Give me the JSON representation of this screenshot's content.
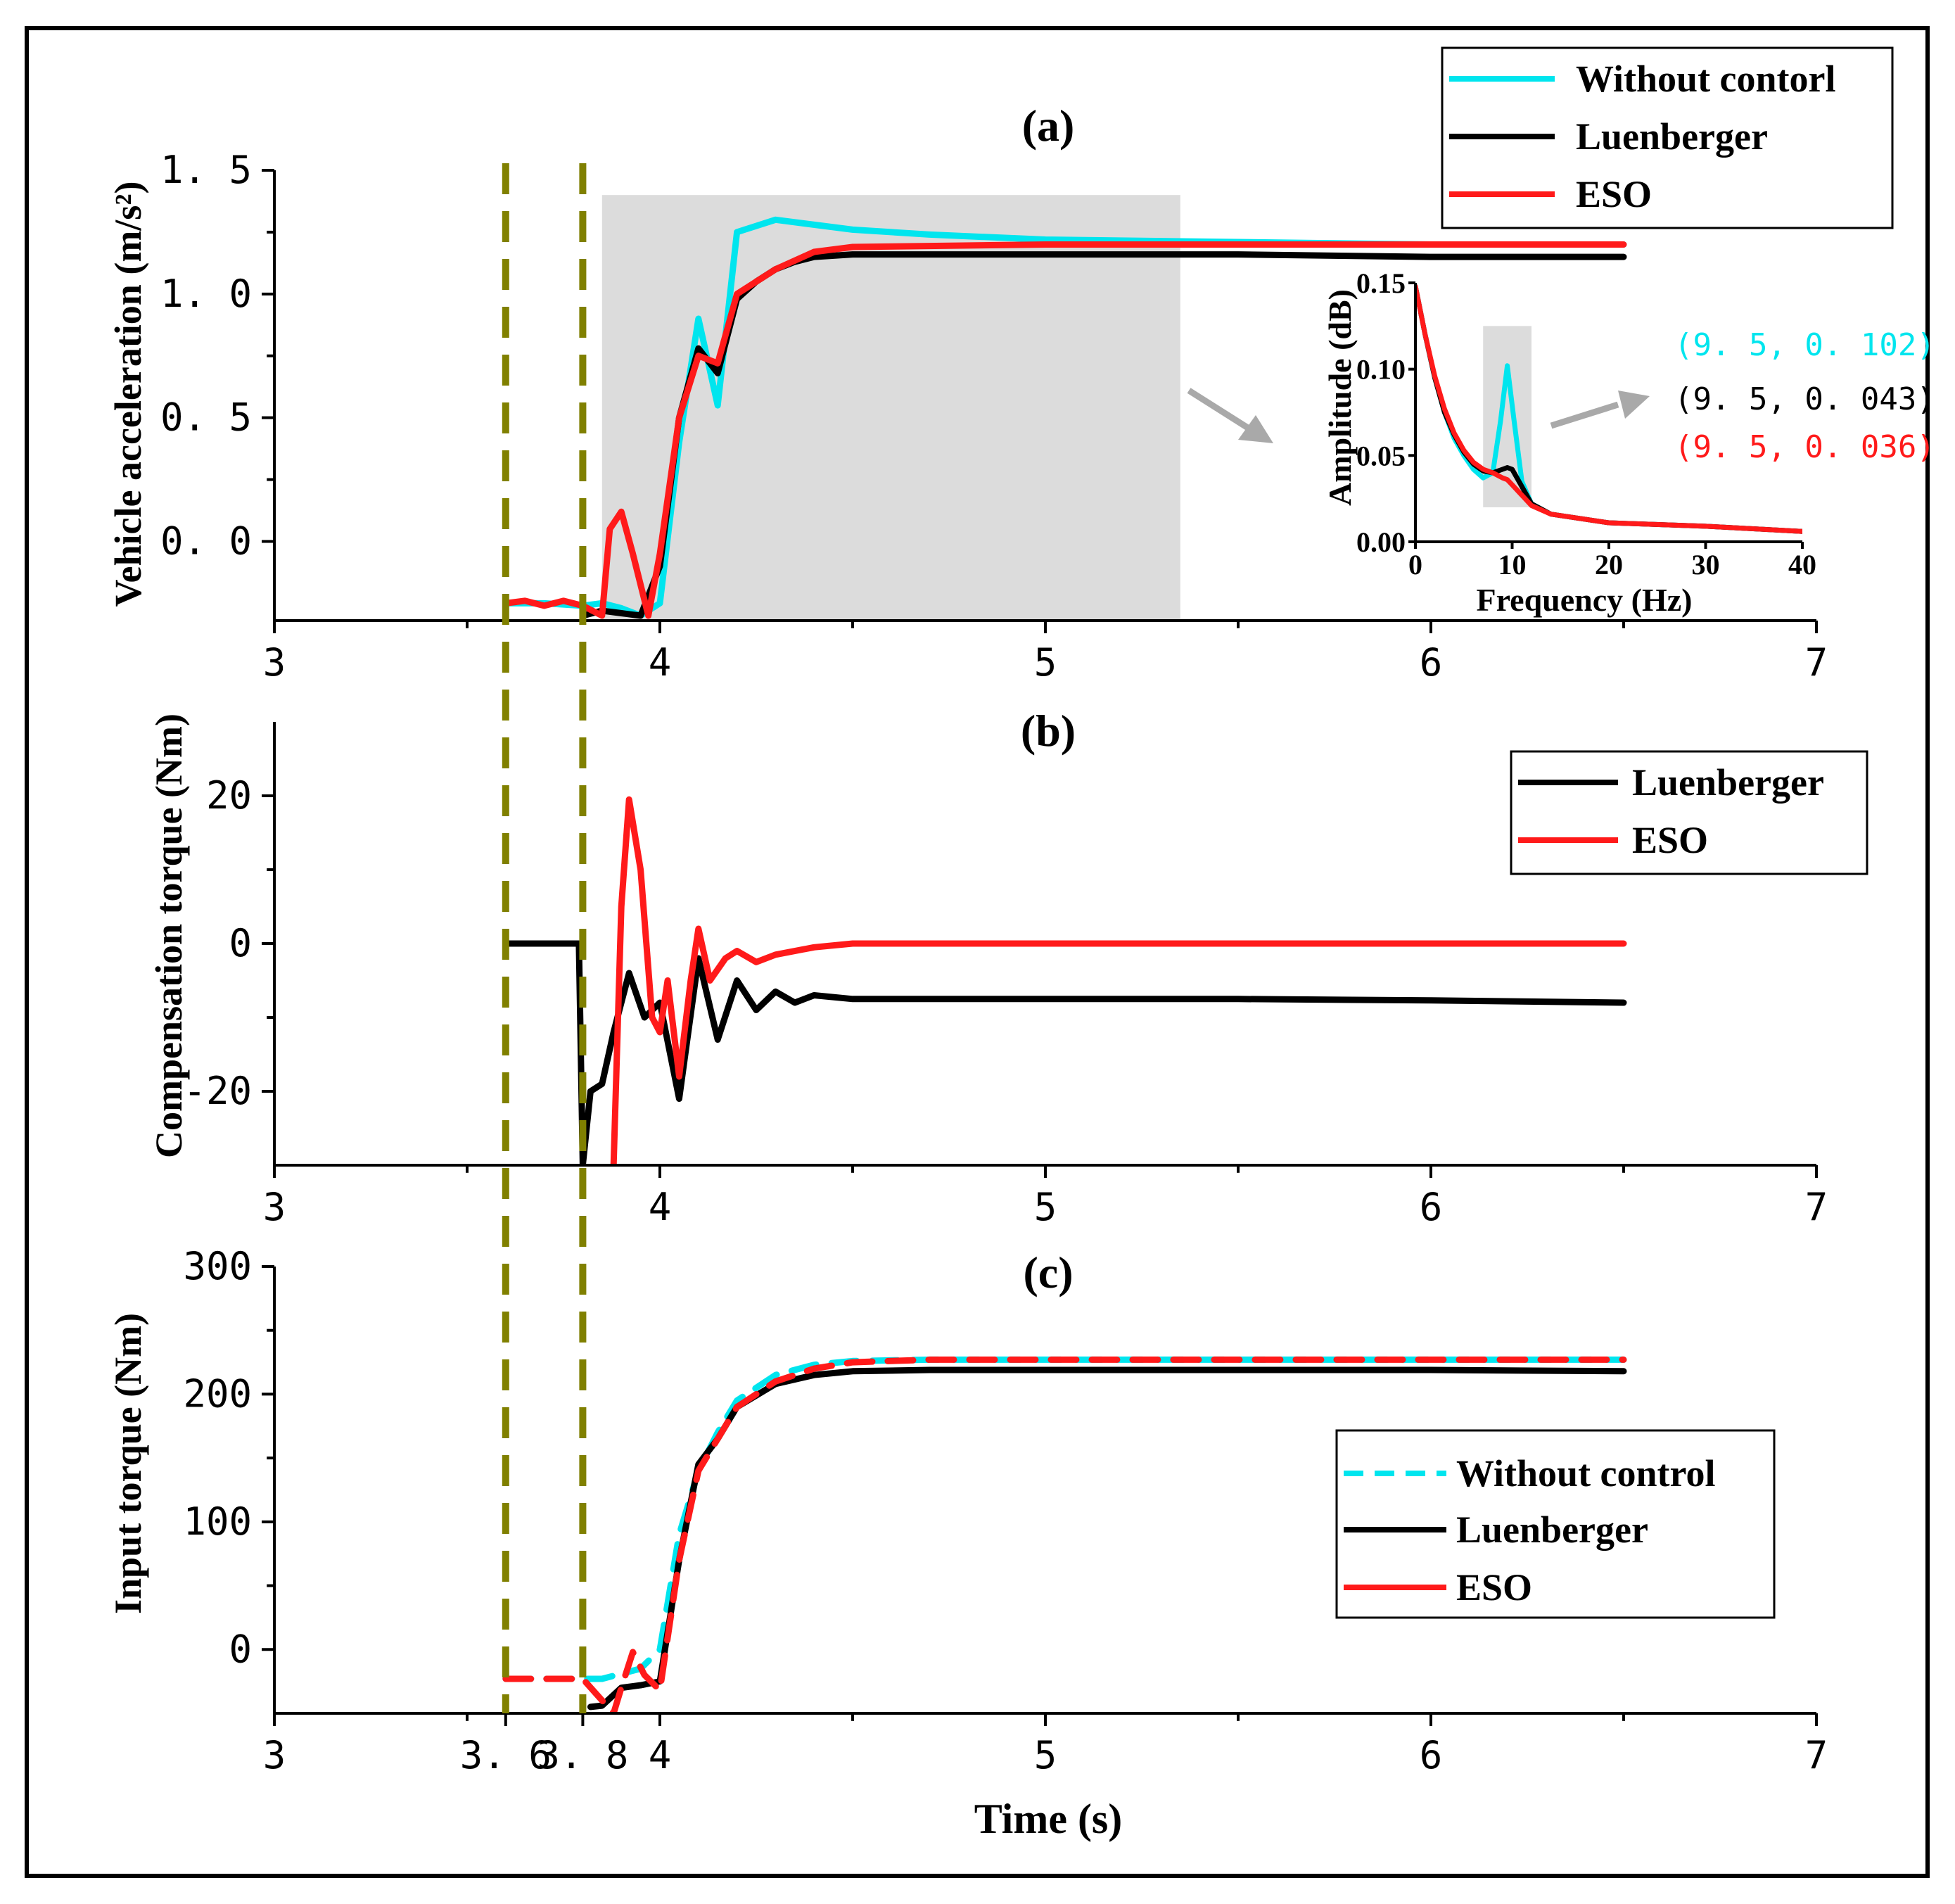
{
  "colors": {
    "cyan": "#00e5ee",
    "black": "#000000",
    "red": "#ff1a1a",
    "marker": "#808000",
    "shade": "#dcdcdc"
  },
  "chart_data": [
    {
      "id": "a",
      "type": "line",
      "title": "(a)",
      "xlabel": "",
      "ylabel": "Vehicle acceleration (m/s²)",
      "xlim": [
        3,
        7
      ],
      "ylim": [
        -0.32,
        1.5
      ],
      "xticks": [
        3,
        4,
        5,
        6,
        7
      ],
      "yticks": [
        0.0,
        0.5,
        1.0,
        1.5
      ],
      "ytick_labels": [
        "0. 0",
        "0. 5",
        "1. 0",
        "1. 5"
      ],
      "legend": [
        "Without contorl",
        "Luenberger",
        "ESO"
      ],
      "legend_position": "top-right",
      "highlight_region": {
        "x": [
          3.85,
          5.35
        ],
        "y": [
          -0.32,
          1.4
        ]
      },
      "series": [
        {
          "name": "Without contorl",
          "color": "cyan",
          "x": [
            3.6,
            3.7,
            3.8,
            3.85,
            3.9,
            3.95,
            4.0,
            4.05,
            4.1,
            4.15,
            4.2,
            4.3,
            4.4,
            4.5,
            4.7,
            5.0,
            5.5,
            6.0,
            6.5
          ],
          "y": [
            -0.25,
            -0.25,
            -0.26,
            -0.25,
            -0.27,
            -0.3,
            -0.25,
            0.4,
            0.9,
            0.55,
            1.25,
            1.3,
            1.28,
            1.26,
            1.24,
            1.22,
            1.21,
            1.2,
            1.2
          ]
        },
        {
          "name": "Luenberger",
          "color": "black",
          "x": [
            3.8,
            3.85,
            3.9,
            3.95,
            4.0,
            4.05,
            4.1,
            4.15,
            4.2,
            4.25,
            4.3,
            4.35,
            4.4,
            4.5,
            5.0,
            5.5,
            6.0,
            6.5
          ],
          "y": [
            -0.3,
            -0.28,
            -0.29,
            -0.3,
            -0.1,
            0.5,
            0.78,
            0.68,
            0.98,
            1.05,
            1.1,
            1.13,
            1.15,
            1.16,
            1.16,
            1.16,
            1.15,
            1.15
          ]
        },
        {
          "name": "ESO",
          "color": "red",
          "x": [
            3.6,
            3.65,
            3.7,
            3.75,
            3.8,
            3.85,
            3.87,
            3.9,
            3.93,
            3.97,
            4.0,
            4.05,
            4.1,
            4.15,
            4.2,
            4.3,
            4.4,
            4.5,
            5.0,
            5.5,
            6.0,
            6.5
          ],
          "y": [
            -0.25,
            -0.24,
            -0.26,
            -0.24,
            -0.26,
            -0.3,
            0.05,
            0.12,
            -0.05,
            -0.3,
            -0.05,
            0.5,
            0.75,
            0.72,
            1.0,
            1.1,
            1.17,
            1.19,
            1.2,
            1.2,
            1.2,
            1.2
          ]
        }
      ],
      "inset": {
        "type": "line",
        "xlabel": "Frequency (Hz)",
        "ylabel": "Amplitude (dB)",
        "xlim": [
          0,
          40
        ],
        "ylim": [
          0,
          0.15
        ],
        "xticks": [
          0,
          10,
          20,
          30,
          40
        ],
        "yticks": [
          0.0,
          0.05,
          0.1,
          0.15
        ],
        "ytick_labels": [
          "0.00",
          "0.05",
          "0.10",
          "0.15"
        ],
        "highlight_region": {
          "x": [
            7,
            12
          ],
          "y": [
            0.02,
            0.125
          ]
        },
        "annotations": [
          {
            "text": "(9. 5,  0. 102)",
            "color": "cyan"
          },
          {
            "text": "(9. 5,  0. 043)",
            "color": "black"
          },
          {
            "text": "(9. 5,  0. 036)",
            "color": "red"
          }
        ],
        "series": [
          {
            "name": "Without contorl",
            "color": "cyan",
            "x": [
              0,
              1,
              2,
              3,
              4,
              5,
              6,
              7,
              8,
              8.8,
              9.5,
              10.2,
              11,
              12,
              14,
              20,
              30,
              40
            ],
            "y": [
              0.148,
              0.12,
              0.095,
              0.075,
              0.06,
              0.05,
              0.042,
              0.037,
              0.04,
              0.07,
              0.102,
              0.07,
              0.035,
              0.022,
              0.016,
              0.011,
              0.009,
              0.006
            ]
          },
          {
            "name": "Luenberger",
            "color": "black",
            "x": [
              0,
              1,
              2,
              3,
              4,
              5,
              6,
              7,
              8,
              9,
              9.5,
              10,
              11,
              12,
              14,
              20,
              30,
              40
            ],
            "y": [
              0.148,
              0.12,
              0.095,
              0.075,
              0.062,
              0.052,
              0.045,
              0.041,
              0.04,
              0.042,
              0.043,
              0.042,
              0.032,
              0.022,
              0.016,
              0.011,
              0.009,
              0.006
            ]
          },
          {
            "name": "ESO",
            "color": "red",
            "x": [
              0,
              1,
              2,
              3,
              4,
              5,
              6,
              7,
              8,
              9,
              9.5,
              10,
              11,
              12,
              14,
              20,
              30,
              40
            ],
            "y": [
              0.148,
              0.12,
              0.096,
              0.077,
              0.063,
              0.053,
              0.046,
              0.042,
              0.04,
              0.037,
              0.036,
              0.033,
              0.027,
              0.021,
              0.016,
              0.011,
              0.009,
              0.006
            ]
          }
        ]
      }
    },
    {
      "id": "b",
      "type": "line",
      "title": "(b)",
      "xlabel": "",
      "ylabel": "Compensation torque (Nm)",
      "xlim": [
        3,
        7
      ],
      "ylim": [
        -30,
        30
      ],
      "xticks": [
        3,
        4,
        5,
        6,
        7
      ],
      "yticks": [
        -20,
        0,
        20
      ],
      "ytick_labels": [
        "-20",
        "0",
        "20"
      ],
      "legend": [
        "Luenberger",
        "ESO"
      ],
      "legend_position": "top-right",
      "series": [
        {
          "name": "Luenberger",
          "color": "black",
          "x": [
            3.6,
            3.79,
            3.8,
            3.82,
            3.85,
            3.88,
            3.92,
            3.96,
            4.0,
            4.05,
            4.1,
            4.15,
            4.2,
            4.25,
            4.3,
            4.35,
            4.4,
            4.5,
            5.0,
            5.5,
            6.0,
            6.5
          ],
          "y": [
            0,
            0,
            -30,
            -20,
            -19,
            -12,
            -4,
            -10,
            -8,
            -21,
            -2,
            -13,
            -5,
            -9,
            -6.5,
            -8,
            -7,
            -7.5,
            -7.5,
            -7.5,
            -7.7,
            -8
          ]
        },
        {
          "name": "ESO",
          "color": "red",
          "x": [
            3.88,
            3.9,
            3.92,
            3.95,
            3.98,
            4.0,
            4.02,
            4.05,
            4.08,
            4.1,
            4.13,
            4.17,
            4.2,
            4.25,
            4.3,
            4.4,
            4.5,
            5.0,
            5.5,
            6.0,
            6.5
          ],
          "y": [
            -30,
            5,
            19.5,
            10,
            -10,
            -12,
            -5,
            -18,
            -5,
            2,
            -5,
            -2,
            -1,
            -2.5,
            -1.5,
            -0.5,
            0,
            0,
            0,
            0,
            0
          ]
        }
      ]
    },
    {
      "id": "c",
      "type": "line",
      "title": "(c)",
      "xlabel": "Time (s)",
      "ylabel": "Input torque (Nm)",
      "xlim": [
        3,
        7
      ],
      "ylim": [
        -50,
        300
      ],
      "xticks": [
        3,
        3.6,
        3.8,
        4,
        5,
        6,
        7
      ],
      "xtick_labels": [
        "3",
        "3. 6",
        "3. 8",
        "4",
        "5",
        "6",
        "7"
      ],
      "yticks": [
        0,
        100,
        200,
        300
      ],
      "ytick_labels": [
        "0",
        "100",
        "200",
        "300"
      ],
      "legend": [
        "Without control",
        "Luenberger",
        "ESO"
      ],
      "legend_position": "center-right",
      "series": [
        {
          "name": "Without control",
          "color": "cyan",
          "dash": true,
          "x": [
            3.6,
            3.85,
            3.95,
            4.0,
            4.05,
            4.1,
            4.15,
            4.2,
            4.3,
            4.4,
            4.5,
            4.7,
            5.0,
            6.0,
            6.5
          ],
          "y": [
            -23,
            -23,
            -15,
            0,
            90,
            140,
            170,
            195,
            215,
            223,
            226,
            227,
            227,
            227,
            227
          ]
        },
        {
          "name": "Luenberger",
          "color": "black",
          "x": [
            3.82,
            3.85,
            3.9,
            3.95,
            4.0,
            4.05,
            4.1,
            4.15,
            4.2,
            4.3,
            4.4,
            4.5,
            4.7,
            5.0,
            6.0,
            6.5
          ],
          "y": [
            -45,
            -44,
            -30,
            -28,
            -25,
            70,
            145,
            165,
            190,
            208,
            215,
            218,
            219,
            219,
            219,
            218
          ]
        },
        {
          "name": "ESO",
          "color": "red",
          "dash": true,
          "x": [
            3.6,
            3.8,
            3.88,
            3.9,
            3.93,
            3.96,
            4.0,
            4.05,
            4.1,
            4.15,
            4.2,
            4.3,
            4.4,
            4.5,
            4.7,
            5.0,
            6.0,
            6.5
          ],
          "y": [
            -23,
            -23,
            -50,
            -30,
            -2,
            -20,
            -32,
            70,
            140,
            165,
            190,
            210,
            220,
            225,
            227,
            227,
            227,
            227
          ]
        }
      ]
    }
  ],
  "markers": [
    3.6,
    3.8
  ]
}
